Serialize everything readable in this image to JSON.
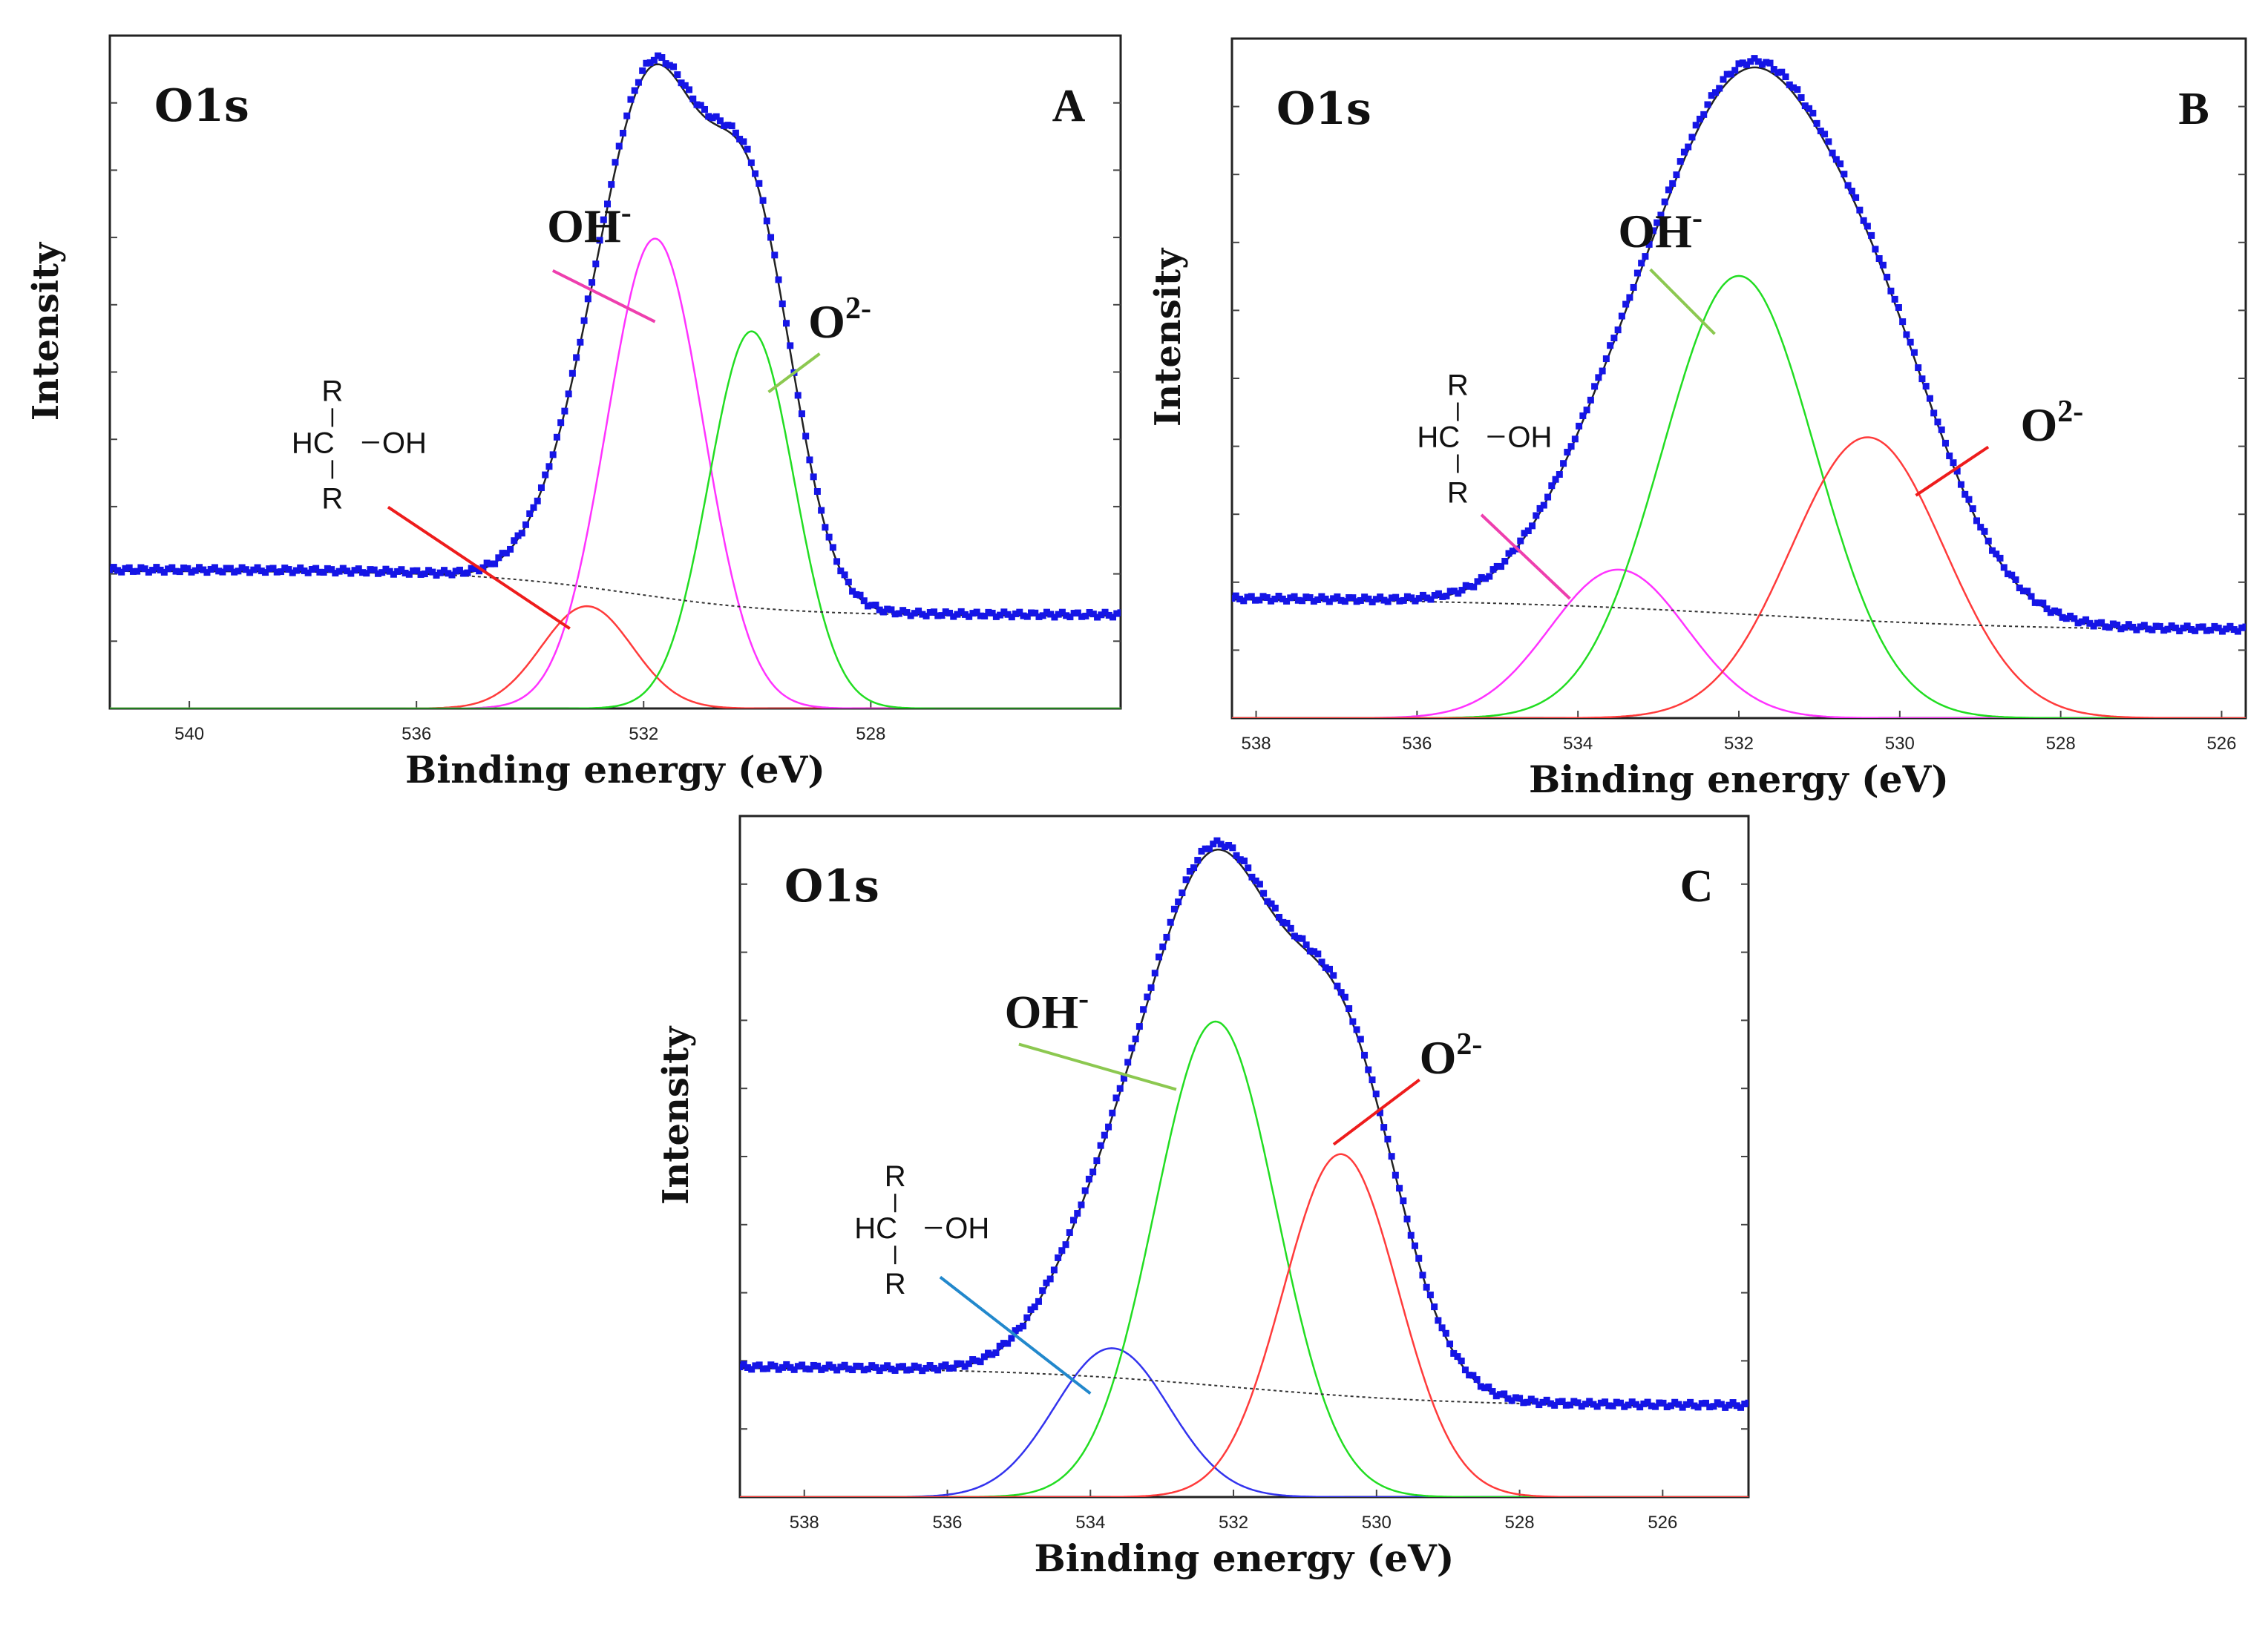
{
  "chart_data": [
    {
      "panel": "A",
      "type": "line",
      "title": "O1s",
      "xlabel": "Binding energy (eV)",
      "ylabel": "Intensity",
      "xlim": [
        541.4,
        523.6
      ],
      "x_ticks": [
        "540",
        "536",
        "532",
        "528"
      ],
      "x_tick_values": [
        540,
        536,
        532,
        528
      ],
      "ylim": [
        0,
        1
      ],
      "grid": false,
      "background": 0.0,
      "bg_left": 0.215,
      "bg_right": 0.145,
      "bg_center": 532.2,
      "bg_width": 1.4,
      "measured_left": 0.215,
      "measured_right": 0.137,
      "components": [
        {
          "name": "C-OH",
          "center": 533.0,
          "height": 0.16,
          "sigma": 0.8,
          "color": "#ff3b3b"
        },
        {
          "name": "OH-",
          "center": 531.8,
          "height": 0.735,
          "sigma": 0.85,
          "color": "#ff33ff"
        },
        {
          "name": "O2-",
          "center": 530.1,
          "height": 0.59,
          "sigma": 0.75,
          "color": "#22dd22"
        }
      ],
      "labels": [
        {
          "text": "OH",
          "sup": "-",
          "x": 533.7,
          "y": 0.73,
          "line": [
            [
              533.6,
              0.685
            ],
            [
              531.8,
              0.605
            ]
          ],
          "line_color": "#ee3fae"
        },
        {
          "text": "O",
          "sup": "2-",
          "x": 529.1,
          "y": 0.58,
          "line": [
            [
              528.9,
              0.555
            ],
            [
              529.8,
              0.495
            ]
          ],
          "line_color": "#8cc850"
        },
        {
          "text": "R-HC-OH",
          "struct": true,
          "x": 538.2,
          "y": 0.4,
          "line": [
            [
              536.5,
              0.315
            ],
            [
              533.3,
              0.125
            ]
          ],
          "line_color": "#ee1c1c"
        }
      ],
      "panel_letter": "A"
    },
    {
      "panel": "B",
      "type": "line",
      "title": "O1s",
      "xlabel": "Binding energy (eV)",
      "ylabel": "Intensity",
      "xlim": [
        538.3,
        525.7
      ],
      "x_ticks": [
        "538",
        "536",
        "534",
        "532",
        "530",
        "528",
        "526"
      ],
      "x_tick_values": [
        538,
        536,
        534,
        532,
        530,
        528,
        526
      ],
      "ylim": [
        0,
        1
      ],
      "grid": false,
      "background": 0.0,
      "bg_left": 0.185,
      "bg_right": 0.135,
      "bg_center": 531.8,
      "bg_width": 1.8,
      "measured_left": 0.185,
      "measured_right": 0.13,
      "components": [
        {
          "name": "C-OH",
          "center": 533.5,
          "height": 0.23,
          "sigma": 0.85,
          "color": "#ff33ff"
        },
        {
          "name": "OH-",
          "center": 532.0,
          "height": 0.685,
          "sigma": 0.95,
          "color": "#22dd22"
        },
        {
          "name": "O2-",
          "center": 530.4,
          "height": 0.435,
          "sigma": 0.95,
          "color": "#ff3b3b"
        }
      ],
      "labels": [
        {
          "text": "OH",
          "sup": "-",
          "x": 533.5,
          "y": 0.73,
          "line": [
            [
              533.1,
              0.695
            ],
            [
              532.3,
              0.595
            ]
          ],
          "line_color": "#8cc850"
        },
        {
          "text": "O",
          "sup": "2-",
          "x": 528.5,
          "y": 0.43,
          "line": [
            [
              528.9,
              0.42
            ],
            [
              529.8,
              0.345
            ]
          ],
          "line_color": "#ee1c1c"
        },
        {
          "text": "R-HC-OH",
          "struct": true,
          "x": 536.0,
          "y": 0.42,
          "line": [
            [
              535.2,
              0.315
            ],
            [
              534.1,
              0.185
            ]
          ],
          "line_color": "#ee3fae"
        }
      ],
      "panel_letter": "B"
    },
    {
      "panel": "C",
      "type": "line",
      "title": "O1s",
      "xlabel": "Binding energy (eV)",
      "ylabel": "Intensity",
      "xlim": [
        538.9,
        524.8
      ],
      "x_ticks": [
        "538",
        "536",
        "534",
        "532",
        "530",
        "528",
        "526"
      ],
      "x_tick_values": [
        538,
        536,
        534,
        532,
        530,
        528,
        526
      ],
      "ylim": [
        0,
        1
      ],
      "grid": false,
      "background": 0.0,
      "bg_left": 0.2,
      "bg_right": 0.14,
      "bg_center": 532.0,
      "bg_width": 1.6,
      "measured_left": 0.2,
      "measured_right": 0.138,
      "components": [
        {
          "name": "C-OH",
          "center": 533.7,
          "height": 0.23,
          "sigma": 0.8,
          "color": "#3333ee"
        },
        {
          "name": "OH-",
          "center": 532.25,
          "height": 0.735,
          "sigma": 0.85,
          "color": "#22dd22"
        },
        {
          "name": "O2-",
          "center": 530.5,
          "height": 0.53,
          "sigma": 0.8,
          "color": "#ff3b3b"
        }
      ],
      "labels": [
        {
          "text": "OH",
          "sup": "-",
          "x": 535.2,
          "y": 0.725,
          "line": [
            [
              535.0,
              0.7
            ],
            [
              532.8,
              0.63
            ]
          ],
          "line_color": "#8cc850"
        },
        {
          "text": "O",
          "sup": "2-",
          "x": 529.4,
          "y": 0.655,
          "line": [
            [
              529.4,
              0.645
            ],
            [
              530.6,
              0.545
            ]
          ],
          "line_color": "#ee1c1c"
        },
        {
          "text": "R-HC-OH",
          "struct": true,
          "x": 537.3,
          "y": 0.4,
          "line": [
            [
              536.1,
              0.34
            ],
            [
              534.0,
              0.16
            ]
          ],
          "line_color": "#2288cc"
        }
      ],
      "panel_letter": "C"
    }
  ],
  "structure_text": {
    "r": "R",
    "hc": "HC",
    "oh": "OH"
  }
}
